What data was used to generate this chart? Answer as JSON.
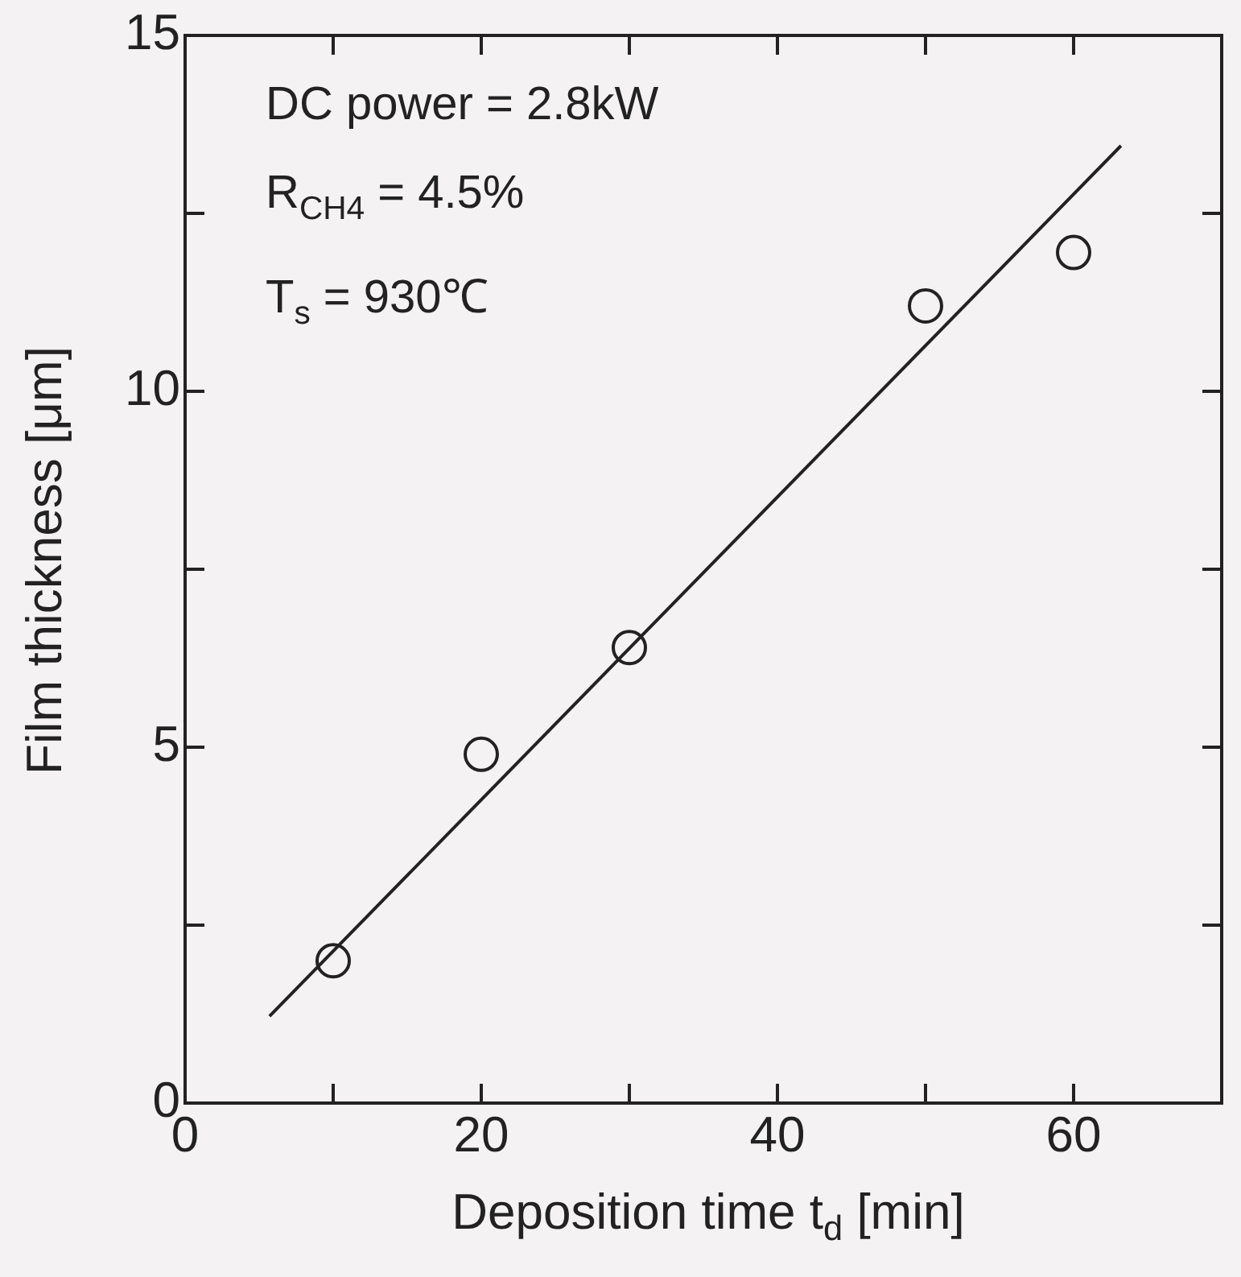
{
  "chart_data": {
    "type": "scatter",
    "xlabel": "Deposition time t$_{d}$ [min]",
    "ylabel": "Film thickness [μm]",
    "annotations": [
      "DC power = 2.8kW",
      "R$_{CH4}$ = 4.5%",
      "T$_{s}$ = 930℃"
    ],
    "xlim": [
      0,
      70
    ],
    "xticks": [
      0,
      {
        "value": 10,
        "label": null
      },
      20,
      {
        "value": 30,
        "label": null
      },
      40,
      {
        "value": 50,
        "label": null
      },
      60
    ],
    "ylim": [
      0,
      15
    ],
    "yticks": [
      0,
      {
        "value": 2.5,
        "label": null
      },
      5,
      {
        "value": 7.5,
        "label": null
      },
      10,
      {
        "value": 12.5,
        "label": null
      },
      15
    ],
    "series": [
      {
        "type": "scatter",
        "color": "#222222",
        "marker": "circle",
        "x": [
          10,
          20,
          30,
          50,
          60
        ],
        "values": [
          2.0,
          4.9,
          6.4,
          11.2,
          11.95
        ]
      },
      {
        "type": "line",
        "color": "#222222",
        "marker": "none",
        "line_style": "solid",
        "x": [
          5.7,
          63.2
        ],
        "values": [
          1.22,
          13.45
        ]
      }
    ]
  }
}
